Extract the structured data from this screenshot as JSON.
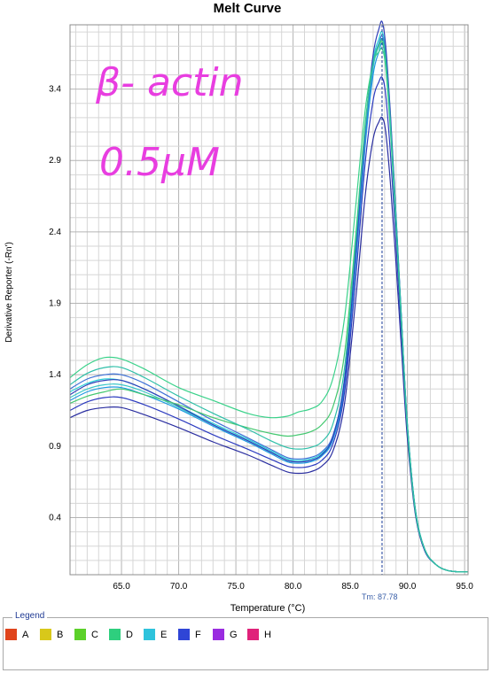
{
  "chart_data": {
    "type": "line",
    "title": "Melt Curve",
    "xlabel": "Temperature (°C)",
    "ylabel": "Derivative Reporter (-Rn')",
    "xlim": [
      60.5,
      95.3
    ],
    "ylim": [
      0.0,
      3.85
    ],
    "x_ticks": [
      65.0,
      70.0,
      75.0,
      80.0,
      85.0,
      90.0,
      95.0
    ],
    "x_tick_labels": [
      "65.0",
      "70.0",
      "75.0",
      "80.0",
      "85.0",
      "90.0",
      "95.0"
    ],
    "y_ticks": [
      0.4,
      0.9,
      1.4,
      1.9,
      2.4,
      2.9,
      3.4
    ],
    "y_tick_labels": [
      "0.4",
      "0.9",
      "1.4",
      "1.9",
      "2.4",
      "2.9",
      "3.4"
    ],
    "grid": true,
    "tm_marker": {
      "x": 87.78,
      "label": "Tm: 87.78"
    },
    "annotation": {
      "text_line1": "β- actin",
      "text_line2": "0.5μM",
      "color": "#e83ee0"
    },
    "series_x": [
      60.5,
      62,
      63.5,
      65,
      67,
      70,
      73,
      76,
      78,
      79.5,
      80.5,
      81.5,
      82.5,
      83.5,
      84.5,
      85.5,
      86.3,
      87,
      87.5,
      87.8,
      88.1,
      88.5,
      89,
      89.5,
      90,
      90.7,
      91.5,
      92.5,
      93.5,
      94.5,
      95.3
    ],
    "series": [
      {
        "color": "#3cc8c8",
        "values": [
          1.24,
          1.3,
          1.33,
          1.33,
          1.28,
          1.17,
          1.05,
          0.94,
          0.86,
          0.8,
          0.79,
          0.8,
          0.84,
          0.96,
          1.35,
          2.25,
          3.05,
          3.55,
          3.7,
          3.75,
          3.62,
          3.2,
          2.5,
          1.75,
          1.05,
          0.45,
          0.18,
          0.07,
          0.03,
          0.02,
          0.02
        ]
      },
      {
        "color": "#2bd0d8",
        "values": [
          1.28,
          1.34,
          1.37,
          1.36,
          1.3,
          1.18,
          1.06,
          0.95,
          0.87,
          0.81,
          0.8,
          0.81,
          0.85,
          0.97,
          1.38,
          2.3,
          3.1,
          3.6,
          3.75,
          3.8,
          3.66,
          3.22,
          2.52,
          1.76,
          1.05,
          0.46,
          0.18,
          0.07,
          0.03,
          0.02,
          0.02
        ]
      },
      {
        "color": "#1e9be0",
        "values": [
          1.22,
          1.28,
          1.31,
          1.31,
          1.26,
          1.16,
          1.04,
          0.93,
          0.85,
          0.79,
          0.78,
          0.79,
          0.83,
          0.95,
          1.32,
          2.2,
          3.0,
          3.5,
          3.66,
          3.72,
          3.58,
          3.15,
          2.46,
          1.72,
          1.03,
          0.45,
          0.18,
          0.07,
          0.03,
          0.02,
          0.02
        ]
      },
      {
        "color": "#3d70d6",
        "values": [
          1.3,
          1.37,
          1.4,
          1.4,
          1.34,
          1.21,
          1.08,
          0.96,
          0.88,
          0.82,
          0.81,
          0.82,
          0.86,
          0.98,
          1.36,
          2.26,
          3.06,
          3.57,
          3.72,
          3.77,
          3.63,
          3.19,
          2.49,
          1.74,
          1.04,
          0.45,
          0.18,
          0.07,
          0.03,
          0.02,
          0.02
        ]
      },
      {
        "color": "#2f3fb8",
        "values": [
          1.26,
          1.33,
          1.36,
          1.36,
          1.3,
          1.18,
          1.05,
          0.94,
          0.86,
          0.8,
          0.79,
          0.8,
          0.84,
          0.97,
          1.37,
          2.28,
          3.12,
          3.64,
          3.82,
          3.87,
          3.7,
          3.24,
          2.52,
          1.75,
          1.04,
          0.45,
          0.18,
          0.07,
          0.03,
          0.02,
          0.02
        ]
      },
      {
        "color": "#2a2ea0",
        "values": [
          1.1,
          1.15,
          1.17,
          1.17,
          1.12,
          1.03,
          0.93,
          0.84,
          0.77,
          0.72,
          0.71,
          0.72,
          0.76,
          0.87,
          1.2,
          1.95,
          2.65,
          3.05,
          3.17,
          3.2,
          3.1,
          2.75,
          2.18,
          1.55,
          0.95,
          0.42,
          0.17,
          0.07,
          0.03,
          0.02,
          0.02
        ]
      },
      {
        "color": "#2d3cc0",
        "values": [
          1.15,
          1.21,
          1.24,
          1.24,
          1.19,
          1.09,
          0.98,
          0.88,
          0.81,
          0.76,
          0.75,
          0.76,
          0.8,
          0.92,
          1.28,
          2.1,
          2.88,
          3.32,
          3.45,
          3.48,
          3.36,
          2.96,
          2.33,
          1.64,
          0.99,
          0.43,
          0.17,
          0.07,
          0.03,
          0.02,
          0.02
        ]
      },
      {
        "color": "#3ad28a",
        "values": [
          1.38,
          1.47,
          1.52,
          1.51,
          1.44,
          1.31,
          1.22,
          1.13,
          1.1,
          1.11,
          1.14,
          1.16,
          1.21,
          1.38,
          1.8,
          2.6,
          3.25,
          3.58,
          3.66,
          3.68,
          3.55,
          3.12,
          2.44,
          1.71,
          1.02,
          0.44,
          0.18,
          0.07,
          0.03,
          0.02,
          0.02
        ]
      },
      {
        "color": "#44c870",
        "values": [
          1.2,
          1.25,
          1.28,
          1.3,
          1.26,
          1.19,
          1.1,
          1.03,
          0.99,
          0.97,
          0.98,
          1.0,
          1.05,
          1.18,
          1.55,
          2.4,
          3.15,
          3.58,
          3.7,
          3.73,
          3.6,
          3.17,
          2.48,
          1.73,
          1.03,
          0.45,
          0.18,
          0.07,
          0.03,
          0.02,
          0.02
        ]
      },
      {
        "color": "#2ebfa8",
        "values": [
          1.33,
          1.41,
          1.45,
          1.45,
          1.38,
          1.25,
          1.13,
          1.02,
          0.94,
          0.89,
          0.88,
          0.89,
          0.93,
          1.06,
          1.45,
          2.35,
          3.12,
          3.58,
          3.71,
          3.75,
          3.62,
          3.18,
          2.49,
          1.74,
          1.04,
          0.45,
          0.18,
          0.07,
          0.03,
          0.02,
          0.02
        ]
      }
    ]
  },
  "legend": {
    "title": "Legend",
    "items": [
      {
        "label": "A",
        "color": "#e0441c"
      },
      {
        "label": "B",
        "color": "#d8c81a"
      },
      {
        "label": "C",
        "color": "#5cd12a"
      },
      {
        "label": "D",
        "color": "#2ecf7e"
      },
      {
        "label": "E",
        "color": "#2ec3dc"
      },
      {
        "label": "F",
        "color": "#2f45d6"
      },
      {
        "label": "G",
        "color": "#9a2ce0"
      },
      {
        "label": "H",
        "color": "#e0227a"
      }
    ]
  }
}
